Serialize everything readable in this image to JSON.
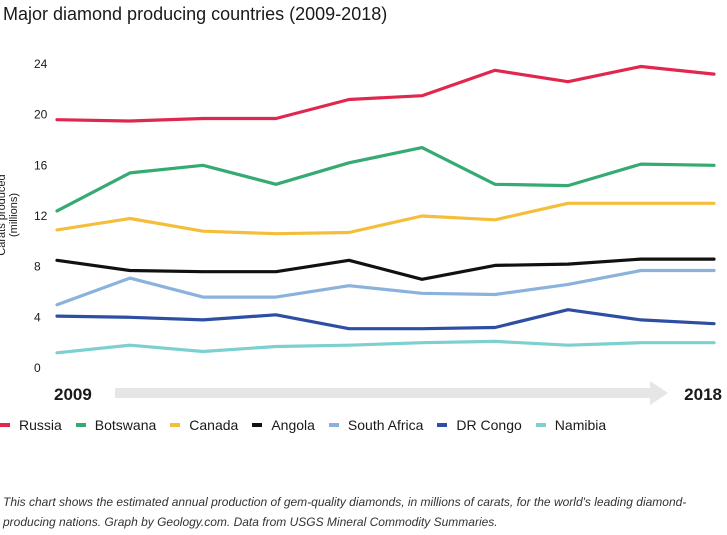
{
  "title": "Major diamond producing countries (2009-2018)",
  "caption": "This chart shows the estimated annual production of gem-quality diamonds, in millions of carats, for the world's leading diamond-producing nations. Graph by Geology.com. Data from USGS Mineral Commodity Summaries.",
  "chart_data": {
    "type": "line",
    "title": "Major diamond producing countries (2009-2018)",
    "ylabel": "Carats produced (millions)",
    "x": [
      2009,
      2010,
      2011,
      2012,
      2013,
      2014,
      2015,
      2016,
      2017,
      2018
    ],
    "x_start_label": "2009",
    "x_end_label": "2018",
    "ylim": [
      0,
      24
    ],
    "yticks": [
      0,
      4,
      8,
      12,
      16,
      20,
      24
    ],
    "grid": false,
    "legend": "bottom",
    "series": [
      {
        "name": "Russia",
        "color": "#e0284f",
        "values": [
          19.6,
          19.5,
          19.7,
          19.7,
          21.2,
          21.5,
          23.5,
          22.6,
          23.8,
          23.2
        ]
      },
      {
        "name": "Botswana",
        "color": "#35aa72",
        "values": [
          12.4,
          15.4,
          16.0,
          14.5,
          16.2,
          17.4,
          14.5,
          14.4,
          16.1,
          16.0
        ]
      },
      {
        "name": "Canada",
        "color": "#f4be3b",
        "values": [
          10.9,
          11.8,
          10.8,
          10.6,
          10.7,
          12.0,
          11.7,
          13.0,
          13.0,
          13.0
        ]
      },
      {
        "name": "Angola",
        "color": "#111111",
        "values": [
          8.5,
          7.7,
          7.6,
          7.6,
          8.5,
          7.0,
          8.1,
          8.2,
          8.6,
          8.6
        ]
      },
      {
        "name": "South Africa",
        "color": "#8ab2dc",
        "values": [
          5.0,
          7.1,
          5.6,
          5.6,
          6.5,
          5.9,
          5.8,
          6.6,
          7.7,
          7.7
        ]
      },
      {
        "name": "DR Congo",
        "color": "#2e4ea3",
        "values": [
          4.1,
          4.0,
          3.8,
          4.2,
          3.1,
          3.1,
          3.2,
          4.6,
          3.8,
          3.5
        ]
      },
      {
        "name": "Namibia",
        "color": "#7dd0d0",
        "values": [
          1.2,
          1.8,
          1.3,
          1.7,
          1.8,
          2.0,
          2.1,
          1.8,
          2.0,
          2.0
        ]
      }
    ]
  }
}
